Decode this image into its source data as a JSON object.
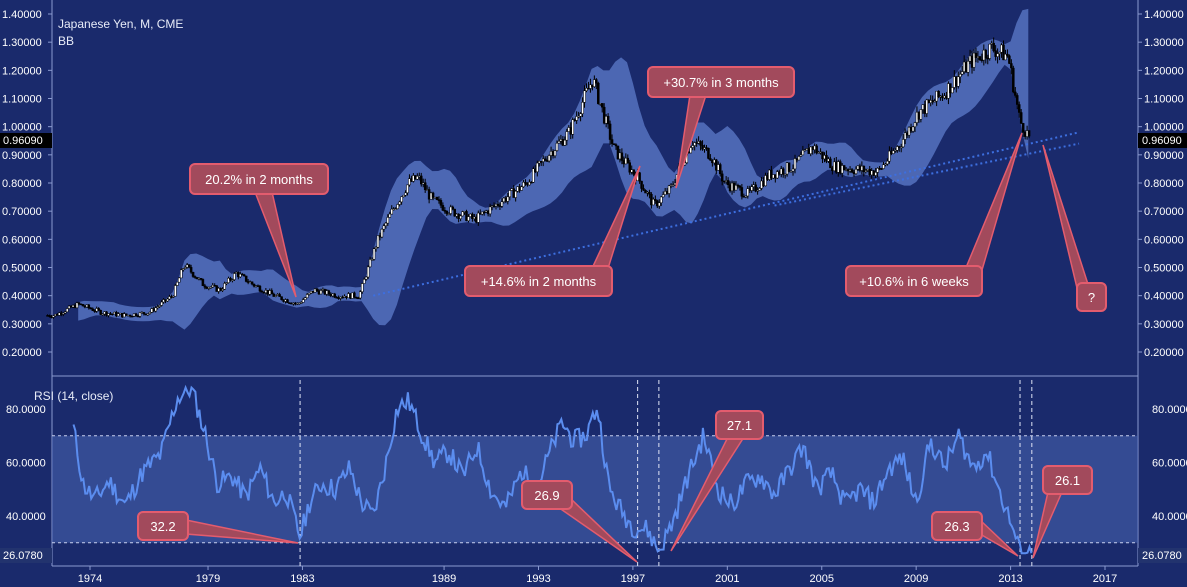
{
  "header": {
    "title": "Japanese Yen, M, CME",
    "indicator": "BB",
    "rsi_label": "RSI (14, close)",
    "price_marker": "0.96090",
    "rsi_marker": "26.0780"
  },
  "colors": {
    "background": "#1a2a6c",
    "band_fill": "#5d7ccb",
    "rsi_line": "#5b8def",
    "callout_fill": "#a24a5c",
    "callout_stroke": "#e35c6e",
    "trendline": "#3d6fe0",
    "text": "#e8ecf8"
  },
  "chart_data": [
    {
      "type": "candlestick",
      "title": "Japanese Yen, M, CME",
      "ylim": [
        0.12,
        1.4
      ],
      "y_ticks": [
        "1.40000",
        "1.30000",
        "1.20000",
        "1.10000",
        "1.00000",
        "0.90000",
        "0.80000",
        "0.70000",
        "0.60000",
        "0.50000",
        "0.40000",
        "0.30000",
        "0.20000"
      ],
      "x_ticks": [
        "1974",
        "1979",
        "1983",
        "1989",
        "1993",
        "1997",
        "2001",
        "2005",
        "2009",
        "2013",
        "2017"
      ],
      "series": [
        {
          "name": "close",
          "x": [
            1972.5,
            1973.5,
            1974.5,
            1975.5,
            1976.5,
            1977.5,
            1978.0,
            1978.8,
            1979.5,
            1980.2,
            1980.9,
            1981.8,
            1982.8,
            1983.5,
            1984.5,
            1985.4,
            1986.2,
            1986.8,
            1987.5,
            1987.9,
            1988.5,
            1989.3,
            1990.3,
            1991.5,
            1992.5,
            1993.4,
            1994.3,
            1995.3,
            1996.2,
            1997.2,
            1997.9,
            1998.6,
            1999.5,
            2000.3,
            2000.9,
            2001.9,
            2002.8,
            2003.8,
            2004.6,
            2005.5,
            2006.3,
            2007.4,
            2008.4,
            2009.1,
            2010.2,
            2011.3,
            2012.2,
            2012.9,
            2013.4,
            2013.8
          ],
          "values": [
            0.33,
            0.37,
            0.34,
            0.33,
            0.34,
            0.4,
            0.51,
            0.44,
            0.42,
            0.48,
            0.44,
            0.4,
            0.37,
            0.42,
            0.4,
            0.4,
            0.6,
            0.7,
            0.8,
            0.82,
            0.74,
            0.7,
            0.67,
            0.74,
            0.8,
            0.9,
            0.98,
            1.17,
            0.92,
            0.82,
            0.72,
            0.78,
            0.95,
            0.9,
            0.8,
            0.76,
            0.83,
            0.86,
            0.93,
            0.86,
            0.85,
            0.84,
            0.95,
            1.05,
            1.12,
            1.23,
            1.28,
            1.25,
            1.02,
            0.9609
          ]
        }
      ],
      "trendline": {
        "x": [
          1986.0,
          2015.9
        ],
        "y": [
          0.4,
          0.98
        ]
      },
      "annotations": [
        "20.2% in 2 months",
        "+14.6% in 2 months",
        "+30.7% in 3 months",
        "+10.6% in 6 weeks",
        "?"
      ]
    },
    {
      "type": "line",
      "title": "RSI (14, close)",
      "ylim": [
        26.078,
        88
      ],
      "y_ticks": [
        "80.0000",
        "60.0000",
        "40.0000"
      ],
      "overbought": 70,
      "oversold": 30,
      "series": [
        {
          "name": "RSI",
          "x": [
            1973.3,
            1973.7,
            1974.2,
            1974.8,
            1975.5,
            1976.2,
            1977.0,
            1977.7,
            1978.3,
            1978.9,
            1979.4,
            1980.0,
            1980.6,
            1981.2,
            1981.8,
            1982.3,
            1982.9,
            1983.3,
            1983.8,
            1984.4,
            1985.0,
            1985.5,
            1986.0,
            1986.5,
            1987.0,
            1987.5,
            1988.0,
            1988.6,
            1989.2,
            1989.8,
            1990.4,
            1991.0,
            1991.6,
            1992.3,
            1992.9,
            1993.4,
            1994.0,
            1994.5,
            1995.0,
            1995.5,
            1996.0,
            1996.5,
            1997.0,
            1997.6,
            1998.1,
            1998.7,
            1999.3,
            2000.0,
            2000.6,
            2001.2,
            2001.8,
            2002.4,
            2003.0,
            2003.6,
            2004.2,
            2004.8,
            2005.4,
            2006.0,
            2006.6,
            2007.2,
            2007.8,
            2008.4,
            2009.0,
            2009.6,
            2010.2,
            2010.8,
            2011.4,
            2012.0,
            2012.5,
            2013.0,
            2013.4,
            2013.9
          ],
          "values": [
            73,
            52,
            46,
            53,
            44,
            56,
            63,
            84,
            88,
            70,
            52,
            55,
            47,
            58,
            45,
            49,
            32.2,
            45,
            52,
            50,
            58,
            45,
            40,
            58,
            80,
            83,
            72,
            60,
            64,
            55,
            66,
            49,
            43,
            57,
            50,
            62,
            75,
            68,
            70,
            81,
            50,
            42,
            36,
            35,
            26.9,
            38,
            54,
            70,
            50,
            44,
            52,
            55,
            48,
            57,
            66,
            50,
            56,
            44,
            50,
            45,
            57,
            62,
            45,
            68,
            58,
            70,
            58,
            64,
            50,
            38,
            26.3,
            26.1
          ]
        }
      ],
      "annotations": [
        "32.2",
        "26.9",
        "27.1",
        "26.3",
        "26.1"
      ]
    }
  ]
}
